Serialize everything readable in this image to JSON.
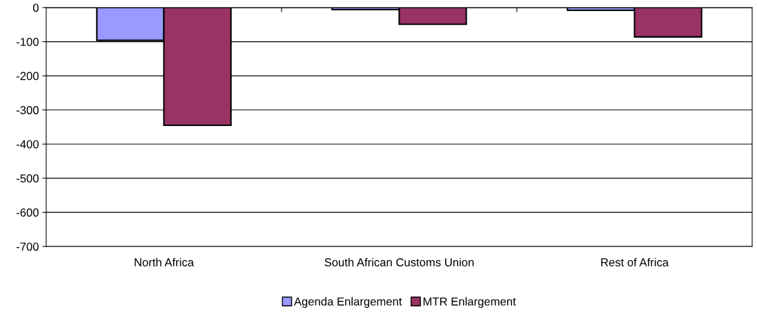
{
  "chart_data": {
    "type": "bar",
    "categories": [
      "North Africa",
      "South African Customs Union",
      "Rest of Africa"
    ],
    "series": [
      {
        "name": "Agenda Enlargement",
        "color": "#9999ff",
        "values": [
          -96,
          -6,
          -8
        ]
      },
      {
        "name": "MTR Enlargement",
        "color": "#993366",
        "values": [
          -345,
          -49,
          -86
        ]
      }
    ],
    "ylim": [
      -700,
      0
    ],
    "yticks": [
      -700,
      -600,
      -500,
      -400,
      -300,
      -200,
      -100,
      0
    ],
    "grid": "y",
    "legend": "bottom"
  }
}
